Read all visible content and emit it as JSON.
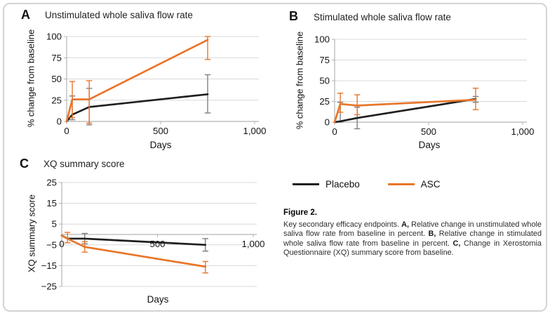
{
  "figure": {
    "legend": {
      "items": [
        {
          "label": "Placebo",
          "color": "#1f1f1f"
        },
        {
          "label": "ASC",
          "color": "#e8762a"
        }
      ]
    },
    "caption": {
      "title": "Figure 2.",
      "segments": [
        {
          "text": "Key secondary efficacy endpoints. ",
          "bold": false
        },
        {
          "text": "A,",
          "bold": true
        },
        {
          "text": " Relative change in unstimulated whole saliva flow rate from baseline in percent. ",
          "bold": false
        },
        {
          "text": "B,",
          "bold": true
        },
        {
          "text": " Relative change in stimulated whole saliva flow rate from baseline in percent. ",
          "bold": false
        },
        {
          "text": "C,",
          "bold": true
        },
        {
          "text": " Change in Xerostomia Questionnaire (XQ) summary score from baseline.",
          "bold": false
        }
      ]
    }
  },
  "panels": [
    {
      "label": "A",
      "title": "Unstimulated whole saliva flow rate"
    },
    {
      "label": "B",
      "title": "Stimulated whole saliva flow rate"
    },
    {
      "label": "C",
      "title": "XQ summary score"
    }
  ],
  "colors": {
    "placebo_line": "#1f1f1f",
    "placebo_error": "#7f7f7f",
    "asc_line": "#e8762a",
    "gridline": "#d9d9d9",
    "axis": "#b3b3b3"
  },
  "chart_data": [
    {
      "id": "A",
      "type": "line",
      "panel_label": "A",
      "title": "Unstimulated whole saliva flow rate",
      "xlabel": "Days",
      "ylabel": "% change from baseline",
      "xlim": [
        0,
        1000
      ],
      "ylim": [
        0,
        100
      ],
      "grid": true,
      "xticks": [
        {
          "v": 0,
          "label": "0"
        },
        {
          "v": 500,
          "label": "500"
        },
        {
          "v": 1000,
          "label": "1,000"
        }
      ],
      "yticks": [
        {
          "v": 0,
          "label": "0"
        },
        {
          "v": 25,
          "label": "25"
        },
        {
          "v": 50,
          "label": "50"
        },
        {
          "v": 75,
          "label": "75"
        },
        {
          "v": 100,
          "label": "100"
        }
      ],
      "x": [
        0,
        30,
        120,
        750
      ],
      "series": [
        {
          "name": "Placebo",
          "color": "#1f1f1f",
          "err_color": "#7f7f7f",
          "values": [
            0,
            8,
            17,
            32
          ],
          "err_low": [
            null,
            2,
            -4,
            10
          ],
          "err_high": [
            null,
            30,
            39,
            55
          ]
        },
        {
          "name": "ASC",
          "color": "#e8762a",
          "err_color": "#e8762a",
          "values": [
            0,
            26,
            26,
            96
          ],
          "err_low": [
            null,
            4.5,
            -2,
            73
          ],
          "err_high": [
            null,
            47,
            48,
            100
          ]
        }
      ]
    },
    {
      "id": "B",
      "type": "line",
      "panel_label": "B",
      "title": "Stimulated whole saliva flow rate",
      "xlabel": "Days",
      "ylabel": "% change from baseline",
      "xlim": [
        0,
        1000
      ],
      "ylim": [
        0,
        100
      ],
      "grid": true,
      "xticks": [
        {
          "v": 0,
          "label": "0"
        },
        {
          "v": 500,
          "label": "500"
        },
        {
          "v": 1000,
          "label": "1,000"
        }
      ],
      "yticks": [
        {
          "v": 0,
          "label": "0"
        },
        {
          "v": 25,
          "label": "25"
        },
        {
          "v": 50,
          "label": "50"
        },
        {
          "v": 75,
          "label": "75"
        },
        {
          "v": 100,
          "label": "100"
        }
      ],
      "x": [
        0,
        30,
        120,
        750
      ],
      "series": [
        {
          "name": "Placebo",
          "color": "#1f1f1f",
          "err_color": "#7f7f7f",
          "values": [
            0,
            1,
            5,
            28
          ],
          "err_low": [
            null,
            0,
            -8,
            24
          ],
          "err_high": [
            null,
            24,
            18,
            31
          ]
        },
        {
          "name": "ASC",
          "color": "#e8762a",
          "err_color": "#e8762a",
          "values": [
            0,
            22,
            20,
            27
          ],
          "err_low": [
            null,
            12,
            9,
            15
          ],
          "err_high": [
            null,
            35,
            33,
            41
          ]
        }
      ]
    },
    {
      "id": "C",
      "type": "line",
      "panel_label": "C",
      "title": "XQ summary score",
      "xlabel": "Days",
      "ylabel": "XQ summary score",
      "xlim": [
        0,
        1000
      ],
      "ylim": [
        -25,
        25
      ],
      "grid": true,
      "xticks": [
        {
          "v": 0,
          "label": "0"
        },
        {
          "v": 500,
          "label": "500"
        },
        {
          "v": 1000,
          "label": "1,000"
        }
      ],
      "yticks": [
        {
          "v": 25,
          "label": "25"
        },
        {
          "v": 15,
          "label": "15"
        },
        {
          "v": 5,
          "label": "5"
        },
        {
          "v": -5,
          "label": "−5"
        },
        {
          "v": -15,
          "label": "−15"
        },
        {
          "v": -25,
          "label": "−25"
        }
      ],
      "x": [
        0,
        30,
        120,
        750
      ],
      "series": [
        {
          "name": "Placebo",
          "color": "#1f1f1f",
          "err_color": "#7f7f7f",
          "values": [
            -0.5,
            -2,
            -2,
            -5
          ],
          "err_low": [
            null,
            null,
            -4.5,
            -8
          ],
          "err_high": [
            null,
            null,
            0.5,
            -2
          ]
        },
        {
          "name": "ASC",
          "color": "#e8762a",
          "err_color": "#e8762a",
          "values": [
            -0.5,
            -2,
            -6,
            -15.5
          ],
          "err_low": [
            null,
            -4,
            -8.5,
            -18.5
          ],
          "err_high": [
            null,
            1,
            -3.5,
            -13
          ]
        }
      ]
    }
  ]
}
